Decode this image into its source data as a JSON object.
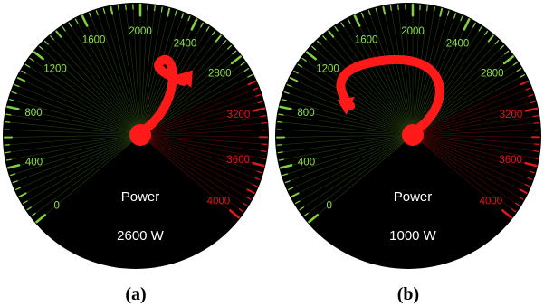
{
  "colors": {
    "dial_background": "#000000",
    "normal_zone": "#7fd13b",
    "redline_zone": "#e01818",
    "needle": "#ff1a1a"
  },
  "gauge_scale": {
    "min": 0,
    "max": 4000,
    "redline_start": 3000,
    "tick_labels": [
      "0",
      "400",
      "800",
      "1200",
      "1600",
      "2000",
      "2400",
      "2800",
      "3200",
      "3600",
      "4000"
    ]
  },
  "panels": [
    {
      "title": "Power",
      "value_text": "2600 W",
      "value": 2600,
      "caption": "(a)"
    },
    {
      "title": "Power",
      "value_text": "1000 W",
      "value": 1000,
      "caption": "(b)"
    }
  ]
}
